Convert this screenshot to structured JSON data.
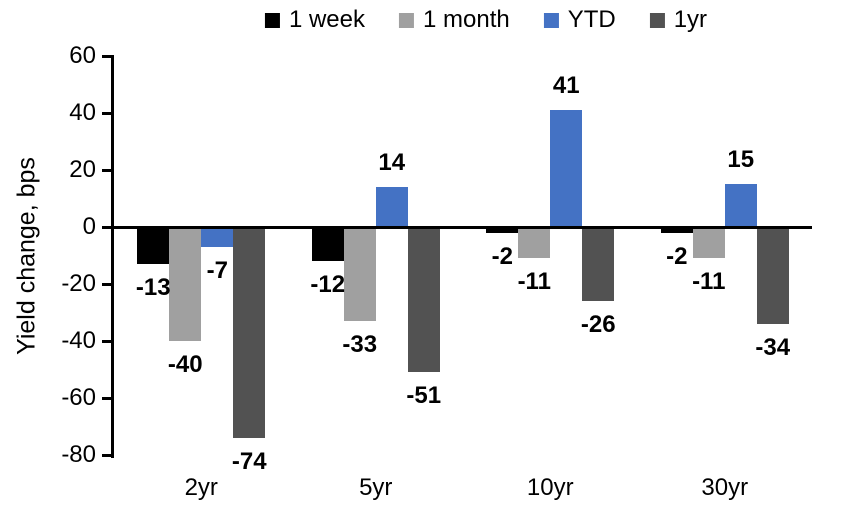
{
  "chart_data": {
    "type": "bar",
    "title": "",
    "ylabel": "Yield change, bps",
    "xlabel": "",
    "ylim": [
      -80,
      60
    ],
    "ytick_step": 20,
    "grid": false,
    "legend_position": "top",
    "categories": [
      "2yr",
      "5yr",
      "10yr",
      "30yr"
    ],
    "series": [
      {
        "name": "1 week",
        "color": "#000000",
        "values": [
          -13,
          -12,
          -2,
          -2
        ]
      },
      {
        "name": "1 month",
        "color": "#A0A0A0",
        "values": [
          -40,
          -33,
          -11,
          -11
        ]
      },
      {
        "name": "YTD",
        "color": "#4472C4",
        "values": [
          -7,
          14,
          41,
          15
        ]
      },
      {
        "name": "1yr",
        "color": "#525252",
        "values": [
          -74,
          -51,
          -26,
          -34
        ]
      }
    ]
  }
}
